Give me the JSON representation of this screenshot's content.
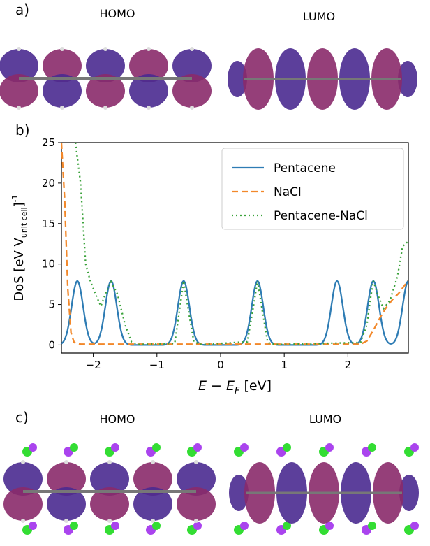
{
  "panels": {
    "a": {
      "label": "a)",
      "homo": "HOMO",
      "lumo": "LUMO"
    },
    "b": {
      "label": "b)"
    },
    "c": {
      "label": "c)",
      "homo": "HOMO",
      "lumo": "LUMO"
    }
  },
  "colors": {
    "lobe_purple": "#4a2a90",
    "lobe_magenta": "#8a2a6a",
    "carbon": "#777777",
    "hydrogen": "#dddddd",
    "chlorine": "#33dd33",
    "sodium": "#aa44ee"
  },
  "chart_data": {
    "type": "line",
    "xlabel": "E − E_F [eV]",
    "ylabel": "DoS [eV V_unit cell]^-1",
    "xlim": [
      -2.5,
      2.95
    ],
    "ylim": [
      -1,
      25
    ],
    "xticks": [
      -2,
      -1,
      0,
      1,
      2
    ],
    "yticks": [
      0,
      5,
      10,
      15,
      20,
      25
    ],
    "legend_position": "top-right",
    "series": [
      {
        "name": "Pentacene",
        "color": "#2e7cb4",
        "style": "solid",
        "peaks": [
          -2.25,
          -1.72,
          -0.58,
          0.58,
          1.83,
          2.4,
          2.95
        ],
        "peak_height": 7.9,
        "width": 0.09
      },
      {
        "name": "NaCl",
        "color": "#f2882a",
        "style": "dashed",
        "points": [
          [
            -2.5,
            25
          ],
          [
            -2.45,
            18
          ],
          [
            -2.4,
            7
          ],
          [
            -2.35,
            1.5
          ],
          [
            -2.3,
            0.3
          ],
          [
            -2.2,
            0.1
          ],
          [
            2.2,
            0.1
          ],
          [
            2.3,
            0.5
          ],
          [
            2.4,
            1.8
          ],
          [
            2.5,
            3.3
          ],
          [
            2.6,
            4.6
          ],
          [
            2.7,
            5.6
          ],
          [
            2.8,
            6.4
          ],
          [
            2.95,
            8.0
          ]
        ]
      },
      {
        "name": "Pentacene-NaCl",
        "color": "#3aa23a",
        "style": "dotted",
        "points": [
          [
            -2.28,
            25
          ],
          [
            -2.2,
            20
          ],
          [
            -2.12,
            10
          ],
          [
            -2.05,
            8
          ],
          [
            -1.95,
            6
          ],
          [
            -1.88,
            4.8
          ],
          [
            -1.8,
            6.5
          ],
          [
            -1.72,
            7.8
          ],
          [
            -1.62,
            6.3
          ],
          [
            -1.5,
            2.5
          ],
          [
            -1.4,
            0.4
          ],
          [
            -1.3,
            0.05
          ],
          [
            -0.72,
            0.2
          ],
          [
            -0.65,
            4.0
          ],
          [
            -0.58,
            7.9
          ],
          [
            -0.5,
            4.0
          ],
          [
            -0.42,
            0.4
          ],
          [
            -0.3,
            0.05
          ],
          [
            0.42,
            0.4
          ],
          [
            0.5,
            4.0
          ],
          [
            0.58,
            7.9
          ],
          [
            0.66,
            4.0
          ],
          [
            0.74,
            0.3
          ],
          [
            0.85,
            0.05
          ],
          [
            2.2,
            0.3
          ],
          [
            2.3,
            2.5
          ],
          [
            2.35,
            5.5
          ],
          [
            2.4,
            7.9
          ],
          [
            2.48,
            6.0
          ],
          [
            2.56,
            4.5
          ],
          [
            2.66,
            5.5
          ],
          [
            2.78,
            8.5
          ],
          [
            2.86,
            12.2
          ],
          [
            2.95,
            12.8
          ]
        ]
      }
    ]
  }
}
